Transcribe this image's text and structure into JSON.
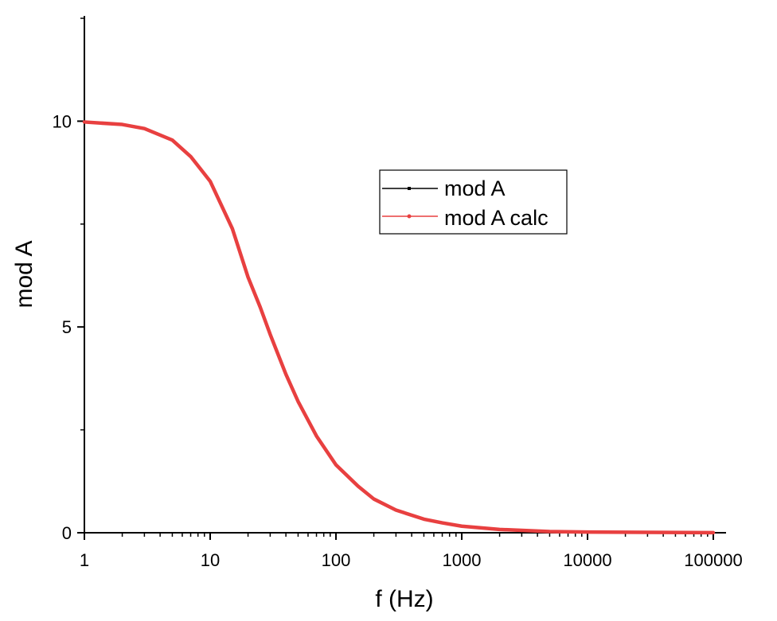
{
  "chart_data": {
    "type": "line",
    "xlabel": "f (Hz)",
    "ylabel": "mod A",
    "xscale": "log",
    "xlim": [
      1,
      100000
    ],
    "ylim": [
      0,
      12.5
    ],
    "x_ticks": [
      1,
      10,
      100,
      1000,
      10000,
      100000
    ],
    "x_tick_labels": [
      "1",
      "10",
      "100",
      "1000",
      "10000",
      "100000"
    ],
    "y_ticks": [
      0,
      5,
      10
    ],
    "y_tick_labels": [
      "0",
      "5",
      "10"
    ],
    "grid": false,
    "legend": {
      "placement": "upper-right-center",
      "entries": [
        "mod A",
        "mod A calc"
      ]
    },
    "series": [
      {
        "name": "mod A",
        "color": "#000000",
        "x": [
          1,
          2,
          3,
          5,
          7,
          10,
          15,
          20,
          25,
          30,
          40,
          50,
          70,
          100,
          150,
          200,
          300,
          500,
          700,
          1000,
          2000,
          5000,
          10000,
          100000
        ],
        "y": [
          9.98,
          9.92,
          9.82,
          9.54,
          9.14,
          8.54,
          7.39,
          6.21,
          5.48,
          4.82,
          3.85,
          3.19,
          2.35,
          1.65,
          1.13,
          0.82,
          0.55,
          0.33,
          0.24,
          0.16,
          0.08,
          0.03,
          0.016,
          0.002
        ]
      },
      {
        "name": "mod A calc",
        "color": "#e84040",
        "x": [
          1,
          2,
          3,
          5,
          7,
          10,
          15,
          20,
          25,
          30,
          40,
          50,
          70,
          100,
          150,
          200,
          300,
          500,
          700,
          1000,
          2000,
          5000,
          10000,
          100000
        ],
        "y": [
          9.98,
          9.92,
          9.82,
          9.54,
          9.14,
          8.54,
          7.39,
          6.21,
          5.48,
          4.82,
          3.85,
          3.19,
          2.35,
          1.65,
          1.13,
          0.82,
          0.55,
          0.33,
          0.24,
          0.16,
          0.08,
          0.03,
          0.016,
          0.002
        ]
      }
    ]
  }
}
